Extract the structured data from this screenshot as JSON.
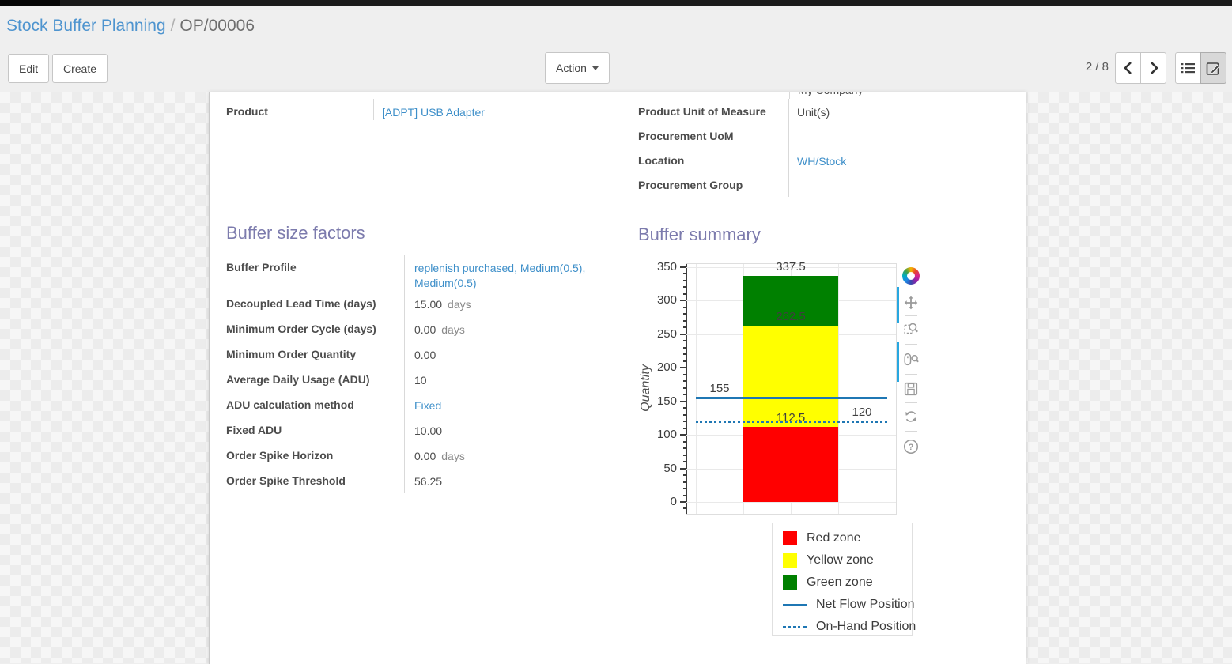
{
  "header": {
    "breadcrumb_parent": "Stock Buffer Planning",
    "breadcrumb_separator": "/",
    "breadcrumb_current": "OP/00006"
  },
  "controls": {
    "edit": "Edit",
    "create": "Create",
    "action": "Action",
    "pager": "2 / 8"
  },
  "form": {
    "top_left_fields": [
      {
        "name": "product",
        "label": "Product",
        "value": "[ADPT] USB Adapter",
        "link": true
      }
    ],
    "top_right_clipped_value": "My Company",
    "top_right_fields": [
      {
        "name": "product-uom",
        "label": "Product Unit of Measure",
        "value": "Unit(s)",
        "link": false
      },
      {
        "name": "procurement-uom",
        "label": "Procurement UoM",
        "value": "",
        "link": false
      },
      {
        "name": "location",
        "label": "Location",
        "value": "WH/Stock",
        "link": true
      },
      {
        "name": "procurement-group",
        "label": "Procurement Group",
        "value": "",
        "link": false
      }
    ],
    "factors": {
      "title": "Buffer size factors",
      "fields": [
        {
          "name": "buffer-profile",
          "label": "Buffer Profile",
          "value": "replenish purchased, Medium(0.5), Medium(0.5)",
          "link": true
        },
        {
          "name": "decoupled-lead-time",
          "label": "Decoupled Lead Time (days)",
          "value": "15.00",
          "suffix": "days"
        },
        {
          "name": "minimum-order-cycle",
          "label": "Minimum Order Cycle (days)",
          "value": "0.00",
          "suffix": "days"
        },
        {
          "name": "minimum-order-quantity",
          "label": "Minimum Order Quantity",
          "value": "0.00"
        },
        {
          "name": "average-daily-usage",
          "label": "Average Daily Usage (ADU)",
          "value": "10"
        },
        {
          "name": "adu-calculation-method",
          "label": "ADU calculation method",
          "value": "Fixed",
          "link": true
        },
        {
          "name": "fixed-adu",
          "label": "Fixed ADU",
          "value": "10.00"
        },
        {
          "name": "order-spike-horizon",
          "label": "Order Spike Horizon",
          "value": "0.00",
          "suffix": "days"
        },
        {
          "name": "order-spike-threshold",
          "label": "Order Spike Threshold",
          "value": "56.25"
        }
      ]
    },
    "summary": {
      "title": "Buffer summary"
    }
  },
  "chart_data": {
    "type": "bar",
    "subtype": "stacked-zone-bar",
    "title": "",
    "xlabel": "",
    "ylabel": "Quantity",
    "ylim": [
      0,
      350
    ],
    "yticks": [
      0,
      50,
      100,
      150,
      200,
      250,
      300,
      350
    ],
    "minor_tick_step": 10,
    "grid": true,
    "zones": [
      {
        "name": "Red zone",
        "from": 0,
        "to": 112.5,
        "color": "#ff0000"
      },
      {
        "name": "Yellow zone",
        "from": 112.5,
        "to": 262.5,
        "color": "#ffff00"
      },
      {
        "name": "Green zone",
        "from": 262.5,
        "to": 337.5,
        "color": "#008000"
      }
    ],
    "lines": [
      {
        "name": "Net Flow Position",
        "value": 155,
        "style": "solid",
        "color": "#1f77b4"
      },
      {
        "name": "On-Hand Position",
        "value": 120,
        "style": "dotted",
        "color": "#1f77b4"
      }
    ],
    "annotations": [
      {
        "text": "337.5",
        "value": 337.5,
        "anchor": "bar-center"
      },
      {
        "text": "262.5",
        "value": 262.5,
        "anchor": "bar-center"
      },
      {
        "text": "112.5",
        "value": 112.5,
        "anchor": "bar-center"
      },
      {
        "text": "155",
        "value": 155,
        "anchor": "left"
      },
      {
        "text": "120",
        "value": 120,
        "anchor": "right"
      }
    ],
    "legend": {
      "position": "below-right",
      "items": [
        {
          "label": "Red zone",
          "swatch": "square",
          "color": "#ff0000"
        },
        {
          "label": "Yellow zone",
          "swatch": "square",
          "color": "#ffff00"
        },
        {
          "label": "Green zone",
          "swatch": "square",
          "color": "#008000"
        },
        {
          "label": "Net Flow Position",
          "swatch": "line-solid",
          "color": "#1f77b4"
        },
        {
          "label": "On-Hand Position",
          "swatch": "line-dotted",
          "color": "#1f77b4"
        }
      ]
    },
    "toolbar_icons": [
      "bokeh-logo",
      "pan",
      "box-zoom",
      "wheel-zoom",
      "save",
      "reset",
      "help"
    ],
    "toolbar_active": [
      "pan",
      "wheel-zoom"
    ]
  }
}
